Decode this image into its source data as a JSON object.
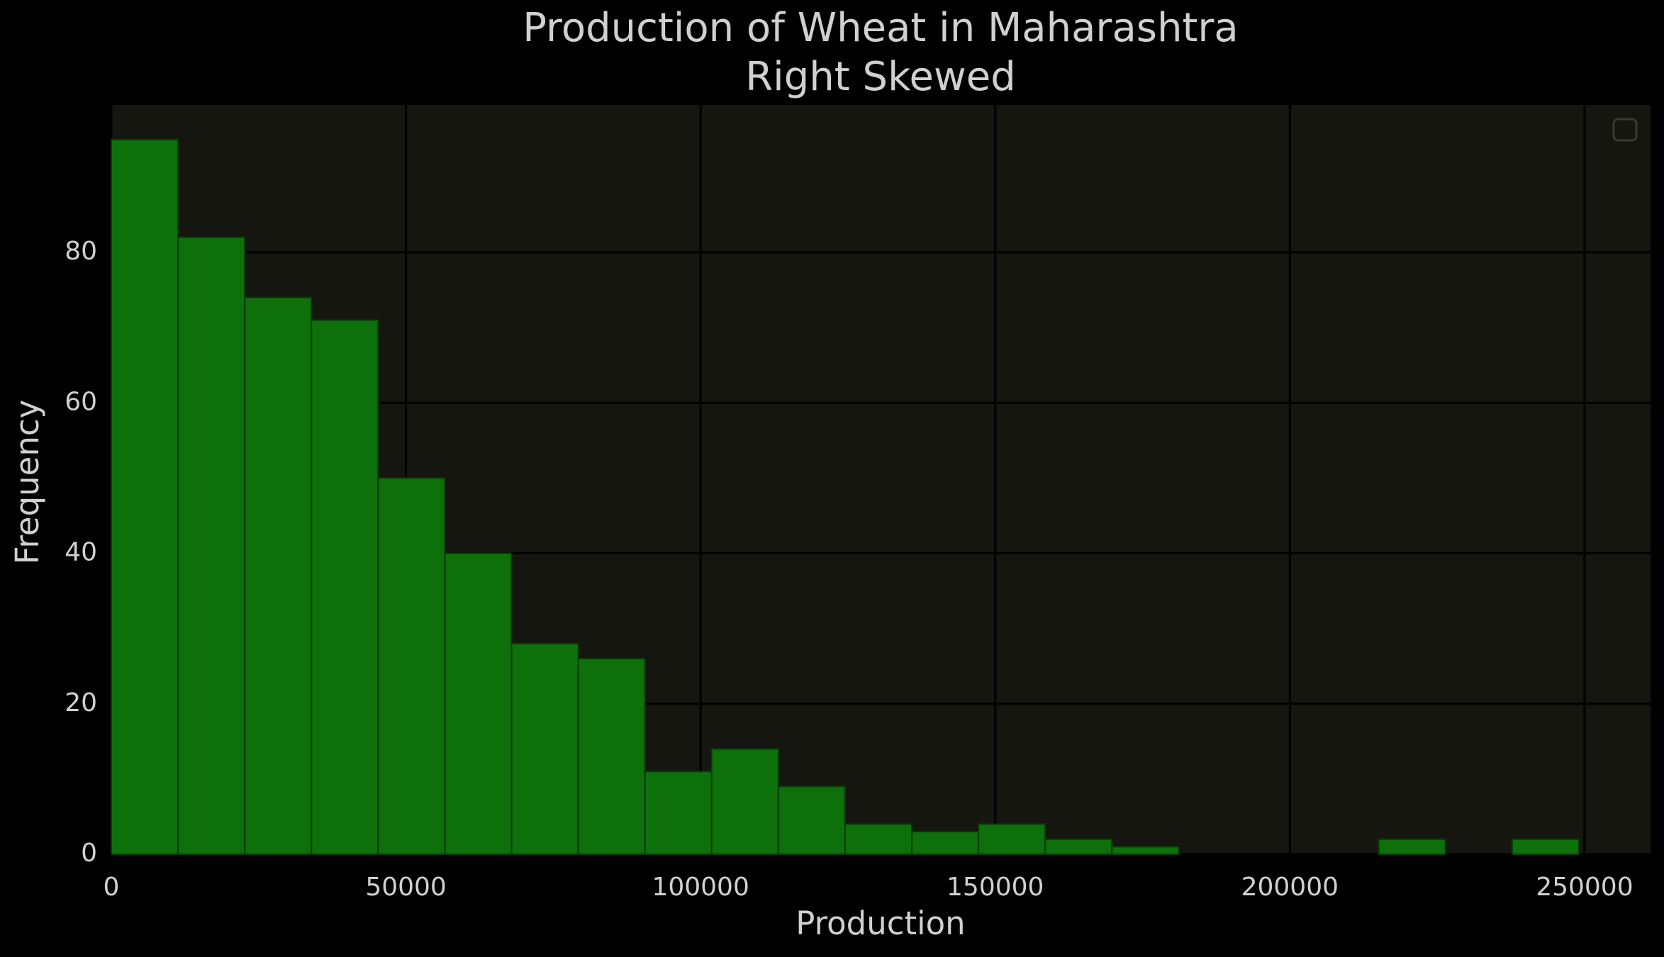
{
  "chart_data": {
    "type": "histogram",
    "title": "Production of Wheat in Maharashtra",
    "subtitle": "Right Skewed",
    "x_label": "Production",
    "y_label": "Frequency",
    "bins": [
      0,
      11320,
      22640,
      33960,
      45280,
      56600,
      67920,
      79240,
      90560,
      101880,
      113200,
      124520,
      135840,
      147160,
      158480,
      169800,
      181120,
      192440,
      203760,
      215080,
      226400,
      237720,
      249040
    ],
    "values": [
      95,
      82,
      74,
      71,
      50,
      40,
      28,
      26,
      11,
      14,
      9,
      4,
      3,
      4,
      2,
      1,
      0,
      0,
      0,
      2,
      0,
      2
    ],
    "color": "#0d700a",
    "xlim": [
      0,
      261200
    ],
    "ylim": [
      0,
      99.6
    ],
    "xticks": [
      0,
      50000,
      100000,
      150000,
      200000,
      250000
    ],
    "yticks": [
      0,
      20,
      40,
      60,
      80
    ],
    "grid": true
  }
}
